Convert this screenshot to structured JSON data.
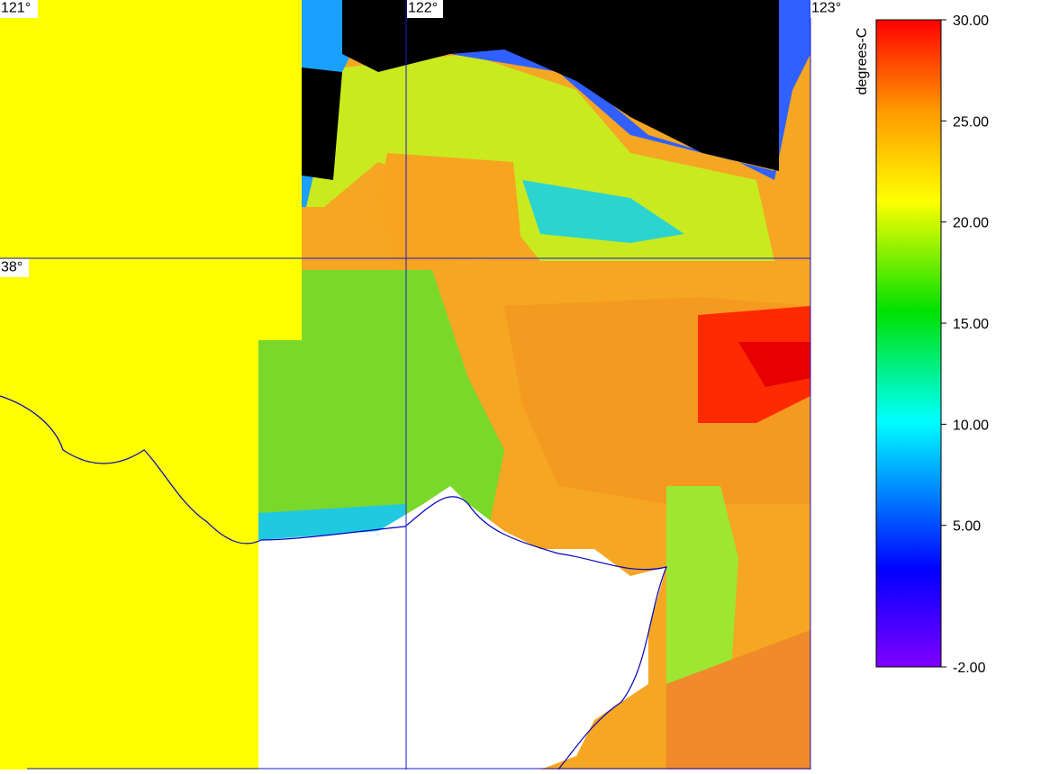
{
  "map": {
    "longitude_labels": [
      "121°",
      "122°",
      "123°"
    ],
    "latitude_labels": [
      "38°"
    ],
    "colorbar": {
      "title": "degrees-C",
      "range": [
        -2,
        30
      ],
      "ticks": [
        {
          "value": 30,
          "label": "30.00"
        },
        {
          "value": 25,
          "label": "25.00"
        },
        {
          "value": 20,
          "label": "20.00"
        },
        {
          "value": 15,
          "label": "15.00"
        },
        {
          "value": 10,
          "label": "10.00"
        },
        {
          "value": 5,
          "label": "5.00"
        },
        {
          "value": -2,
          "label": "-2.00"
        }
      ]
    }
  }
}
